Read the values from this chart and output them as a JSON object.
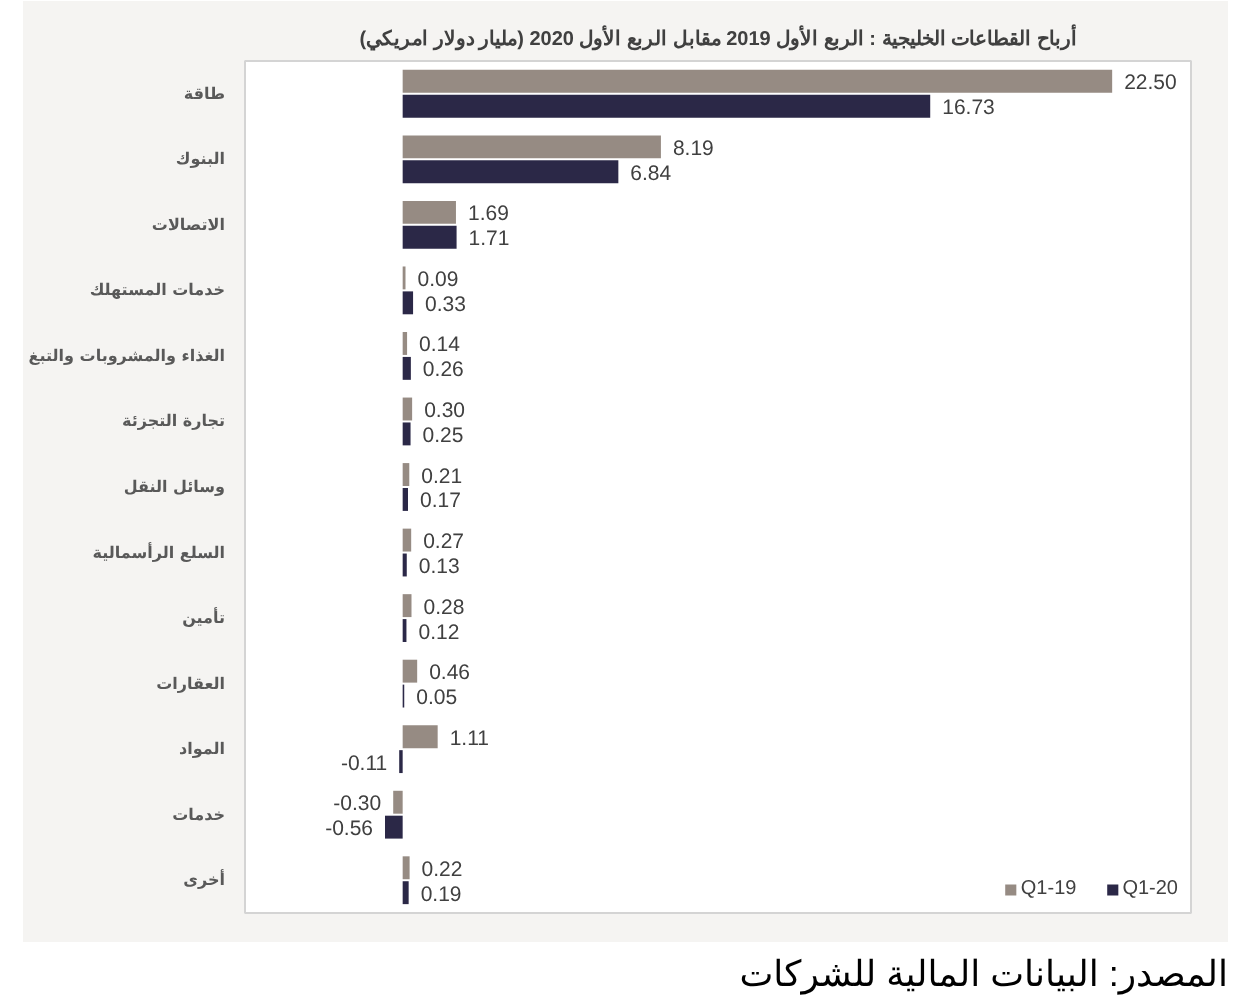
{
  "chart_data": {
    "type": "bar",
    "orientation": "horizontal",
    "title": "أرباح القطاعات الخليجية : الربع الأول 2019 مقابل الربع الأول 2020 (مليار دولار امريكي)",
    "categories": [
      "طاقة",
      "البنوك",
      "الاتصالات",
      "خدمات المستهلك",
      "الغذاء والمشروبات والتبغ",
      "تجارة التجزئة",
      "وسائل النقل",
      "السلع الرأسمالية",
      "تأمين",
      "العقارات",
      "المواد",
      "خدمات",
      "أخرى"
    ],
    "series": [
      {
        "name": "Q1-19",
        "color": "#968b83",
        "values": [
          22.5,
          8.19,
          1.69,
          0.09,
          0.14,
          0.3,
          0.21,
          0.27,
          0.28,
          0.46,
          1.11,
          -0.3,
          0.22
        ],
        "value_labels": [
          "22.50",
          "8.19",
          "1.69",
          "0.09",
          "0.14",
          "0.30",
          "0.21",
          "0.27",
          "0.28",
          "0.46",
          "1.11",
          "-0.30",
          "0.22"
        ]
      },
      {
        "name": "Q1-20",
        "color": "#2b2847",
        "values": [
          16.73,
          6.84,
          1.71,
          0.33,
          0.26,
          0.25,
          0.17,
          0.13,
          0.12,
          0.05,
          -0.11,
          -0.56,
          0.19
        ],
        "value_labels": [
          "16.73",
          "6.84",
          "1.71",
          "0.33",
          "0.26",
          "0.25",
          "0.17",
          "0.13",
          "0.12",
          "0.05",
          "-0.11",
          "-0.56",
          "0.19"
        ]
      }
    ],
    "xlim": [
      -5,
      25
    ],
    "tick_labels": "y",
    "grid": false,
    "legend": "bottom right",
    "annotations": [
      "المصدر: البيانات المالية للشركات"
    ]
  }
}
